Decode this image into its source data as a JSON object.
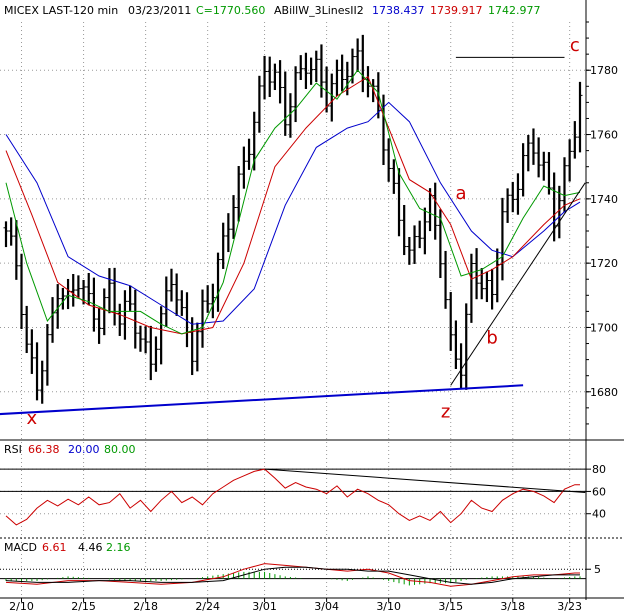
{
  "chart_data": [
    {
      "type": "candlestick",
      "header": {
        "title": "MICEX LAST-120 min",
        "date": "03/23/2011",
        "close_text": "C=1770.560",
        "indicator_name": "ABillW_3LinesII2",
        "indicator_values": [
          {
            "text": "1738.437",
            "color": "#0000cc"
          },
          {
            "text": "1739.917",
            "color": "#cc0000"
          },
          {
            "text": "1742.977",
            "color": "#009900"
          }
        ]
      },
      "ylim": [
        1665,
        1795
      ],
      "yticks": [
        1680,
        1700,
        1720,
        1740,
        1760,
        1780
      ],
      "x_tick_labels": [
        {
          "label": "2/10",
          "bar": 3
        },
        {
          "label": "2/15",
          "bar": 15
        },
        {
          "label": "2/18",
          "bar": 27
        },
        {
          "label": "2/24",
          "bar": 39
        },
        {
          "label": "3/01",
          "bar": 50
        },
        {
          "label": "3/04",
          "bar": 62
        },
        {
          "label": "3/10",
          "bar": 74
        },
        {
          "label": "3/15",
          "bar": 86
        },
        {
          "label": "3/18",
          "bar": 98
        },
        {
          "label": "3/23",
          "bar": 109
        }
      ],
      "bar_count": 112,
      "close_path": [
        [
          0,
          1730
        ],
        [
          2,
          1718
        ],
        [
          4,
          1692
        ],
        [
          6,
          1684
        ],
        [
          8,
          1697
        ],
        [
          10,
          1712
        ],
        [
          12,
          1706
        ],
        [
          14,
          1714
        ],
        [
          16,
          1709
        ],
        [
          18,
          1704
        ],
        [
          20,
          1712
        ],
        [
          22,
          1700
        ],
        [
          24,
          1706
        ],
        [
          26,
          1697
        ],
        [
          28,
          1692
        ],
        [
          30,
          1702
        ],
        [
          32,
          1714
        ],
        [
          34,
          1702
        ],
        [
          36,
          1694
        ],
        [
          38,
          1707
        ],
        [
          40,
          1712
        ],
        [
          42,
          1724
        ],
        [
          44,
          1738
        ],
        [
          46,
          1752
        ],
        [
          48,
          1766
        ],
        [
          50,
          1780
        ],
        [
          52,
          1776
        ],
        [
          54,
          1764
        ],
        [
          56,
          1778
        ],
        [
          58,
          1784
        ],
        [
          60,
          1780
        ],
        [
          62,
          1770
        ],
        [
          64,
          1776
        ],
        [
          66,
          1782
        ],
        [
          68,
          1786
        ],
        [
          70,
          1776
        ],
        [
          72,
          1765
        ],
        [
          74,
          1748
        ],
        [
          76,
          1736
        ],
        [
          78,
          1724
        ],
        [
          80,
          1730
        ],
        [
          82,
          1736
        ],
        [
          84,
          1722
        ],
        [
          86,
          1696
        ],
        [
          88,
          1690
        ],
        [
          90,
          1717
        ],
        [
          92,
          1712
        ],
        [
          94,
          1708
        ],
        [
          96,
          1738
        ],
        [
          98,
          1742
        ],
        [
          100,
          1752
        ],
        [
          102,
          1754
        ],
        [
          104,
          1748
        ],
        [
          106,
          1736
        ],
        [
          108,
          1749
        ],
        [
          110,
          1762
        ],
        [
          111,
          1770
        ]
      ],
      "series": [
        {
          "name": "",
          "color": "#0000cc",
          "points": [
            [
              0,
              1760
            ],
            [
              6,
              1745
            ],
            [
              12,
              1722
            ],
            [
              18,
              1716
            ],
            [
              24,
              1713
            ],
            [
              30,
              1707
            ],
            [
              36,
              1701
            ],
            [
              42,
              1702
            ],
            [
              48,
              1712
            ],
            [
              54,
              1738
            ],
            [
              60,
              1756
            ],
            [
              66,
              1762
            ],
            [
              70,
              1764
            ],
            [
              74,
              1770
            ],
            [
              78,
              1764
            ],
            [
              84,
              1745
            ],
            [
              90,
              1730
            ],
            [
              94,
              1724
            ],
            [
              98,
              1722
            ],
            [
              104,
              1730
            ],
            [
              108,
              1736
            ],
            [
              111,
              1739
            ]
          ]
        },
        {
          "name": "",
          "color": "#cc0000",
          "points": [
            [
              0,
              1755
            ],
            [
              5,
              1735
            ],
            [
              10,
              1714
            ],
            [
              16,
              1707
            ],
            [
              22,
              1704
            ],
            [
              28,
              1700
            ],
            [
              34,
              1698
            ],
            [
              40,
              1700
            ],
            [
              46,
              1720
            ],
            [
              52,
              1750
            ],
            [
              58,
              1762
            ],
            [
              64,
              1772
            ],
            [
              70,
              1778
            ],
            [
              74,
              1762
            ],
            [
              78,
              1746
            ],
            [
              82,
              1742
            ],
            [
              86,
              1732
            ],
            [
              90,
              1715
            ],
            [
              94,
              1718
            ],
            [
              98,
              1722
            ],
            [
              104,
              1732
            ],
            [
              108,
              1738
            ],
            [
              111,
              1740
            ]
          ]
        },
        {
          "name": "",
          "color": "#009900",
          "points": [
            [
              0,
              1745
            ],
            [
              4,
              1720
            ],
            [
              8,
              1702
            ],
            [
              12,
              1710
            ],
            [
              16,
              1708
            ],
            [
              20,
              1705
            ],
            [
              26,
              1705
            ],
            [
              30,
              1701
            ],
            [
              34,
              1698
            ],
            [
              38,
              1700
            ],
            [
              42,
              1714
            ],
            [
              48,
              1752
            ],
            [
              52,
              1762
            ],
            [
              56,
              1768
            ],
            [
              60,
              1776
            ],
            [
              64,
              1771
            ],
            [
              68,
              1780
            ],
            [
              72,
              1773
            ],
            [
              76,
              1748
            ],
            [
              80,
              1737
            ],
            [
              84,
              1734
            ],
            [
              88,
              1716
            ],
            [
              92,
              1718
            ],
            [
              96,
              1722
            ],
            [
              100,
              1734
            ],
            [
              104,
              1744
            ],
            [
              108,
              1741
            ],
            [
              111,
              1742
            ]
          ]
        }
      ],
      "trendlines": [
        {
          "color": "#0000cc",
          "points": [
            [
              -2,
              1673
            ],
            [
              100,
              1682
            ]
          ]
        },
        {
          "color": "#000000",
          "points": [
            [
              86,
              1682
            ],
            [
              112,
              1745
            ]
          ]
        },
        {
          "color": "#000000",
          "points": [
            [
              87,
              1784
            ],
            [
              108,
              1784
            ]
          ]
        }
      ],
      "annotations": [
        {
          "text": "x",
          "bar": 5,
          "value": 1670
        },
        {
          "text": "z",
          "bar": 85,
          "value": 1672
        },
        {
          "text": "a",
          "bar": 88,
          "value": 1740
        },
        {
          "text": "b",
          "bar": 94,
          "value": 1695
        },
        {
          "text": "c",
          "bar": 110,
          "value": 1786
        }
      ]
    },
    {
      "type": "line",
      "name": "RSI",
      "header": {
        "label": "RSI",
        "values": [
          {
            "text": "66.38",
            "color": "#cc0000"
          },
          {
            "text": "20.00",
            "color": "#0000cc"
          },
          {
            "text": "80.00",
            "color": "#009900"
          }
        ]
      },
      "ylim": [
        20,
        90
      ],
      "yticks": [
        40,
        60,
        80
      ],
      "levels": [
        80,
        60
      ],
      "rsi_path": [
        [
          0,
          38
        ],
        [
          2,
          30
        ],
        [
          4,
          35
        ],
        [
          6,
          45
        ],
        [
          8,
          52
        ],
        [
          10,
          47
        ],
        [
          12,
          53
        ],
        [
          14,
          48
        ],
        [
          16,
          55
        ],
        [
          18,
          48
        ],
        [
          20,
          50
        ],
        [
          22,
          58
        ],
        [
          24,
          45
        ],
        [
          26,
          52
        ],
        [
          28,
          42
        ],
        [
          30,
          52
        ],
        [
          32,
          60
        ],
        [
          34,
          50
        ],
        [
          36,
          55
        ],
        [
          38,
          48
        ],
        [
          40,
          58
        ],
        [
          42,
          64
        ],
        [
          44,
          70
        ],
        [
          46,
          74
        ],
        [
          48,
          78
        ],
        [
          50,
          80
        ],
        [
          52,
          72
        ],
        [
          54,
          63
        ],
        [
          56,
          68
        ],
        [
          58,
          64
        ],
        [
          60,
          62
        ],
        [
          62,
          58
        ],
        [
          64,
          65
        ],
        [
          66,
          55
        ],
        [
          68,
          62
        ],
        [
          70,
          58
        ],
        [
          72,
          52
        ],
        [
          74,
          48
        ],
        [
          76,
          40
        ],
        [
          78,
          34
        ],
        [
          80,
          38
        ],
        [
          82,
          34
        ],
        [
          84,
          42
        ],
        [
          86,
          32
        ],
        [
          88,
          40
        ],
        [
          90,
          52
        ],
        [
          92,
          45
        ],
        [
          94,
          42
        ],
        [
          96,
          52
        ],
        [
          98,
          58
        ],
        [
          100,
          62
        ],
        [
          102,
          60
        ],
        [
          104,
          56
        ],
        [
          106,
          50
        ],
        [
          108,
          62
        ],
        [
          110,
          66
        ],
        [
          111,
          66
        ]
      ],
      "trendline": [
        [
          50,
          80
        ],
        [
          112,
          59
        ]
      ]
    },
    {
      "type": "line",
      "name": "MACD",
      "header": {
        "label": "MACD",
        "values": [
          {
            "text": "6.61",
            "color": "#cc0000"
          },
          {
            "text": "4.46",
            "color": "#000000"
          },
          {
            "text": "2.16",
            "color": "#009900"
          }
        ]
      },
      "ylim": [
        -6,
        12
      ],
      "yticks": [
        5
      ],
      "zero": 0,
      "macd": [
        [
          0,
          -2
        ],
        [
          6,
          -3
        ],
        [
          12,
          -1
        ],
        [
          18,
          -1
        ],
        [
          24,
          -2
        ],
        [
          30,
          -3
        ],
        [
          36,
          -2
        ],
        [
          42,
          1
        ],
        [
          46,
          5
        ],
        [
          50,
          8
        ],
        [
          54,
          7
        ],
        [
          58,
          6
        ],
        [
          62,
          5
        ],
        [
          66,
          4
        ],
        [
          70,
          5
        ],
        [
          74,
          3
        ],
        [
          78,
          -1
        ],
        [
          82,
          -2
        ],
        [
          86,
          -4
        ],
        [
          90,
          -3
        ],
        [
          94,
          -1
        ],
        [
          98,
          1
        ],
        [
          102,
          2
        ],
        [
          106,
          2
        ],
        [
          110,
          3
        ],
        [
          111,
          3
        ]
      ],
      "signal": [
        [
          0,
          -1
        ],
        [
          6,
          -2
        ],
        [
          12,
          -2
        ],
        [
          18,
          -1
        ],
        [
          24,
          -1
        ],
        [
          30,
          -2
        ],
        [
          36,
          -2
        ],
        [
          42,
          -1
        ],
        [
          46,
          2
        ],
        [
          50,
          5
        ],
        [
          54,
          6
        ],
        [
          58,
          6
        ],
        [
          62,
          5
        ],
        [
          66,
          5
        ],
        [
          70,
          4
        ],
        [
          74,
          4
        ],
        [
          78,
          2
        ],
        [
          82,
          0
        ],
        [
          86,
          -2
        ],
        [
          90,
          -3
        ],
        [
          94,
          -2
        ],
        [
          98,
          0
        ],
        [
          102,
          1
        ],
        [
          106,
          2
        ],
        [
          110,
          2
        ],
        [
          111,
          2
        ]
      ]
    }
  ]
}
